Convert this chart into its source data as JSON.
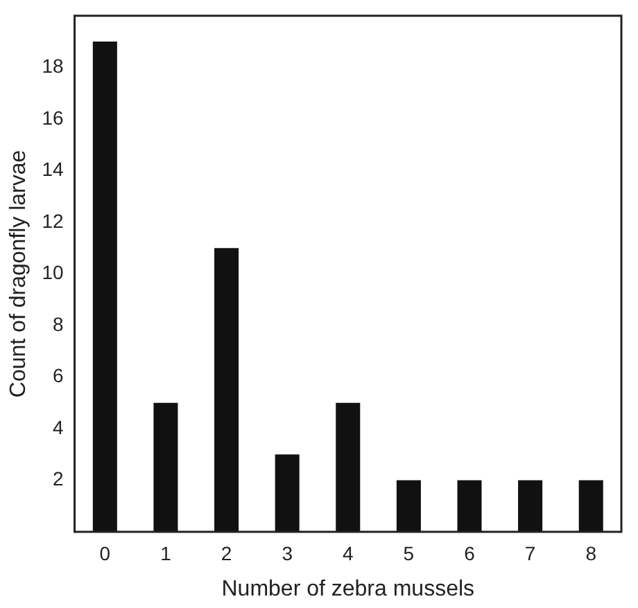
{
  "chart_data": {
    "type": "bar",
    "xlabel": "Number of zebra mussels",
    "ylabel": "Count of dragonfly larvae",
    "categories": [
      "0",
      "1",
      "2",
      "3",
      "4",
      "5",
      "6",
      "7",
      "8"
    ],
    "values": [
      19,
      5,
      11,
      3,
      5,
      2,
      2,
      2,
      2
    ],
    "color": "#111111",
    "ylim": [
      0,
      20
    ],
    "yticks": [
      2,
      4,
      6,
      8,
      10,
      12,
      14,
      16,
      18
    ],
    "grid": false,
    "legend": false
  }
}
